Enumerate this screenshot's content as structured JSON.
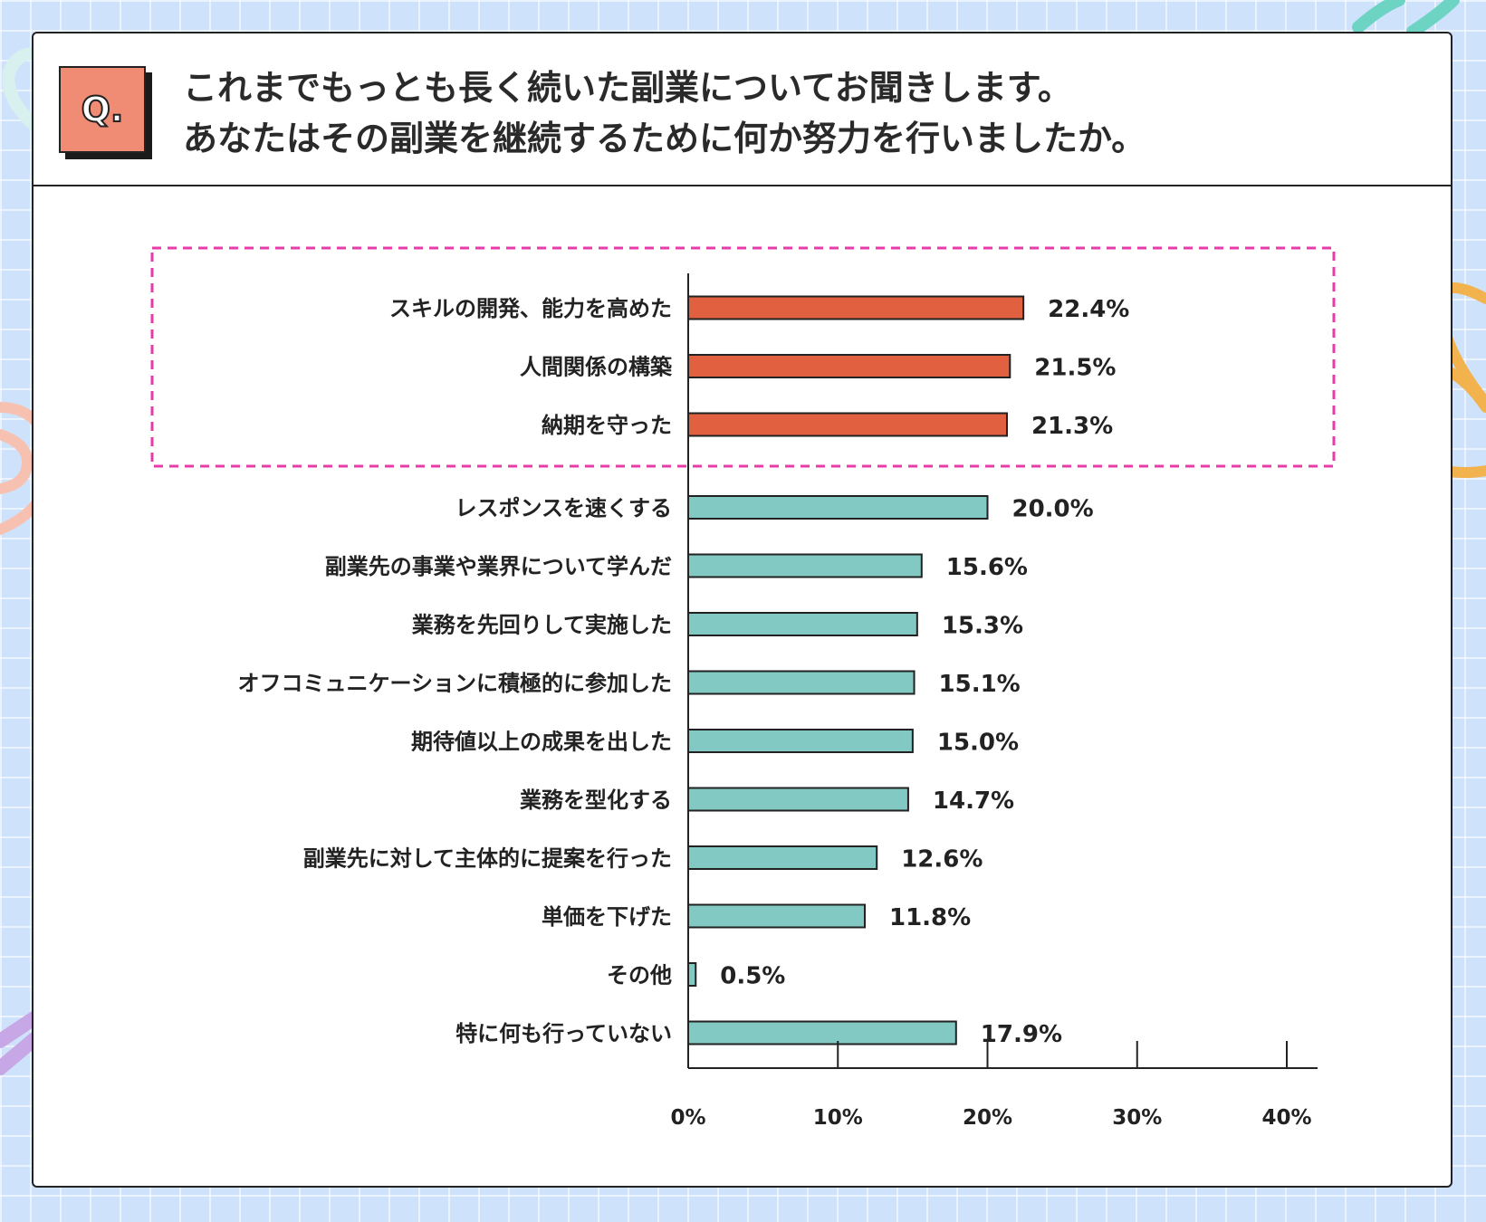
{
  "question": {
    "badge": "Q.",
    "line1": "これまでもっとも長く続いた副業についてお聞きします。",
    "line2": "あなたはその副業を継続するために何か努力を行いましたか。"
  },
  "colors": {
    "highlight_bar": "#e0603f",
    "normal_bar": "#82c8c3",
    "highlight_frame": "#e83aa8"
  },
  "chart_data": {
    "type": "bar",
    "orientation": "horizontal",
    "categories": [
      "スキルの開発、能力を高めた",
      "人間関係の構築",
      "納期を守った",
      "レスポンスを速くする",
      "副業先の事業や業界について学んだ",
      "業務を先回りして実施した",
      "オフコミュニケーションに積極的に参加した",
      "期待値以上の成果を出した",
      "業務を型化する",
      "副業先に対して主体的に提案を行った",
      "単価を下げた",
      "その他",
      "特に何も行っていない"
    ],
    "values": [
      22.4,
      21.5,
      21.3,
      20.0,
      15.6,
      15.3,
      15.1,
      15.0,
      14.7,
      12.6,
      11.8,
      0.5,
      17.9
    ],
    "value_labels": [
      "22.4%",
      "21.5%",
      "21.3%",
      "20.0%",
      "15.6%",
      "15.3%",
      "15.1%",
      "15.0%",
      "14.7%",
      "12.6%",
      "11.8%",
      "0.5%",
      "17.9%"
    ],
    "highlighted": [
      true,
      true,
      true,
      false,
      false,
      false,
      false,
      false,
      false,
      false,
      false,
      false,
      false
    ],
    "xlim": [
      0,
      40
    ],
    "xticks": [
      0,
      10,
      20,
      30,
      40
    ],
    "xtick_labels": [
      "0%",
      "10%",
      "20%",
      "30%",
      "40%"
    ],
    "grid": false
  }
}
